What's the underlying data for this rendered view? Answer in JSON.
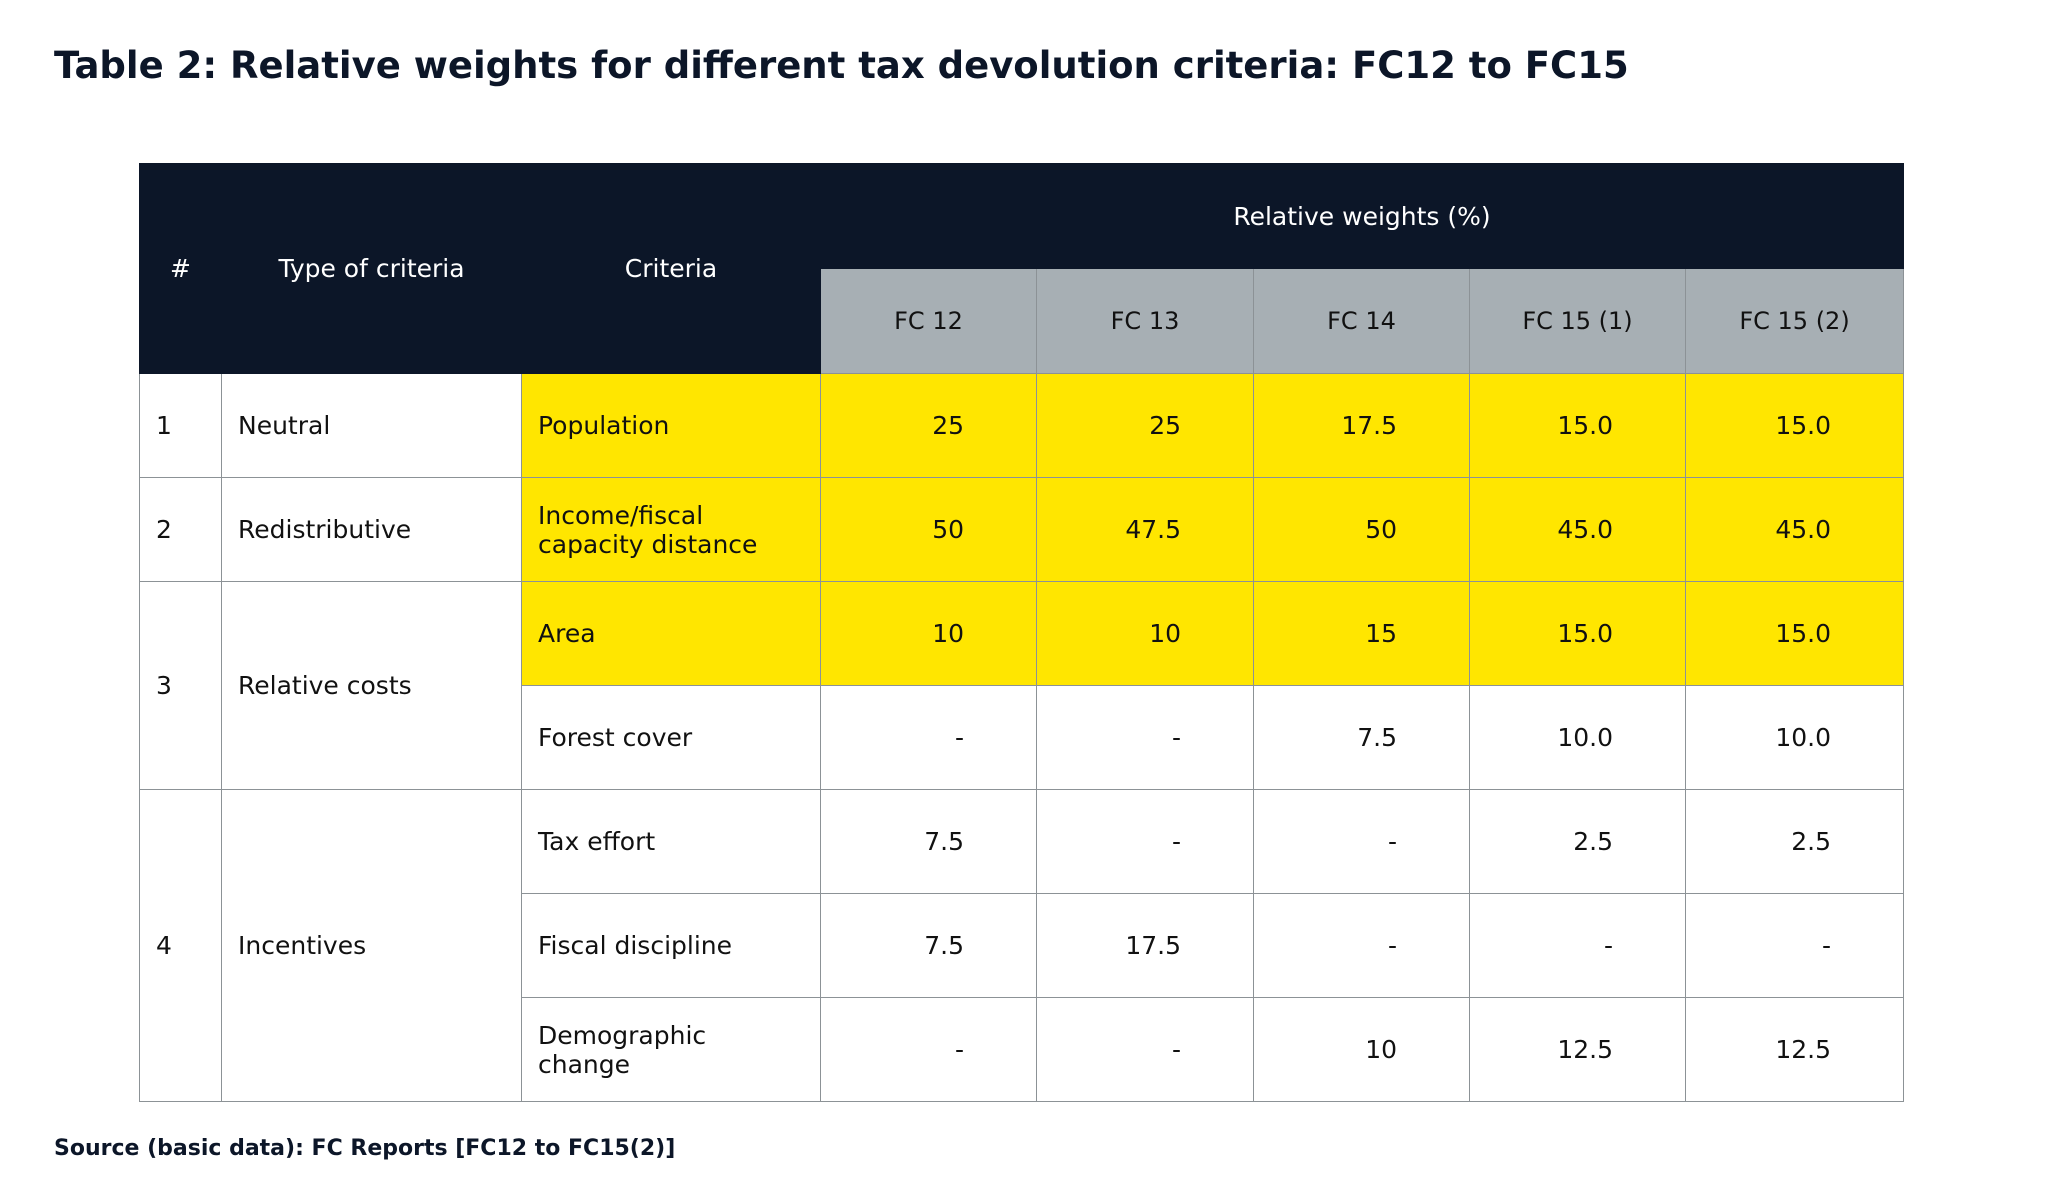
{
  "title": "Table 2:  Relative weights for different tax devolution criteria: FC12 to FC15",
  "headers": {
    "num": "#",
    "type": "Type of criteria",
    "criteria": "Criteria",
    "group": "Relative weights (%)",
    "cols": [
      "FC 12",
      "FC 13",
      "FC 14",
      "FC 15 (1)",
      "FC 15 (2)"
    ]
  },
  "rows": [
    {
      "num": "1",
      "type": "Neutral",
      "criteria": "Population",
      "values": [
        "25",
        "25",
        "17.5",
        "15.0",
        "15.0"
      ]
    },
    {
      "num": "2",
      "type": "Redistributive",
      "criteria": "Income/fiscal capacity distance",
      "values": [
        "50",
        "47.5",
        "50",
        "45.0",
        "45.0"
      ]
    },
    {
      "num": "3",
      "type": "Relative costs",
      "criteria": "Area",
      "values": [
        "10",
        "10",
        "15",
        "15.0",
        "15.0"
      ]
    },
    {
      "criteria": "Forest cover",
      "values": [
        "-",
        "-",
        "7.5",
        "10.0",
        "10.0"
      ]
    },
    {
      "num": "4",
      "type": "Incentives",
      "criteria": "Tax effort",
      "values": [
        "7.5",
        "-",
        "-",
        "2.5",
        "2.5"
      ]
    },
    {
      "criteria": "Fiscal discipline",
      "values": [
        "7.5",
        "17.5",
        "-",
        "-",
        "-"
      ]
    },
    {
      "criteria": "Demographic change",
      "values": [
        "-",
        "-",
        "10",
        "12.5",
        "12.5"
      ]
    }
  ],
  "highlight_color": "#ffe600",
  "header_color": "#0c1628",
  "subheader_color": "#a7afb4",
  "source": "Source (basic data): FC Reports [FC12 to FC15(2)]"
}
